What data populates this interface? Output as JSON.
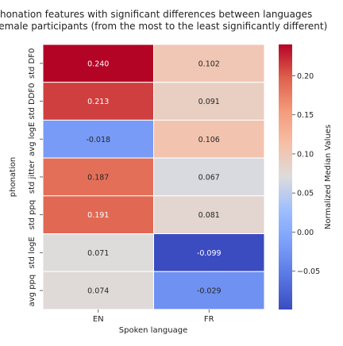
{
  "chart_data": {
    "type": "heatmap",
    "title_lines": [
      "Phonation features with significant differences between languages",
      "for female participants (from the most to the least significantly different)"
    ],
    "xlabel": "Spoken language",
    "ylabel": "phonation",
    "x_categories": [
      "EN",
      "FR"
    ],
    "y_categories": [
      "std DF0",
      "std DDF0",
      "avg logE",
      "std jitter",
      "std ppq",
      "std logE",
      "avg ppq"
    ],
    "values": [
      [
        0.24,
        0.102
      ],
      [
        0.213,
        0.091
      ],
      [
        -0.018,
        0.106
      ],
      [
        0.187,
        0.067
      ],
      [
        0.191,
        0.081
      ],
      [
        0.071,
        -0.099
      ],
      [
        0.074,
        -0.029
      ]
    ],
    "value_labels": [
      [
        "0.240",
        "0.102"
      ],
      [
        "0.213",
        "0.091"
      ],
      [
        "-0.018",
        "0.106"
      ],
      [
        "0.187",
        "0.067"
      ],
      [
        "0.191",
        "0.081"
      ],
      [
        "0.071",
        "-0.099"
      ],
      [
        "0.074",
        "-0.029"
      ]
    ],
    "colormap": "coolwarm",
    "colorbar": {
      "label": "Normalized Median Values",
      "range": [
        -0.099,
        0.24
      ],
      "ticks": [
        0.2,
        0.15,
        0.1,
        0.05,
        0.0,
        -0.05
      ],
      "tick_labels": [
        "0.20",
        "0.15",
        "0.10",
        "0.05",
        "0.00",
        "−0.05"
      ]
    }
  }
}
